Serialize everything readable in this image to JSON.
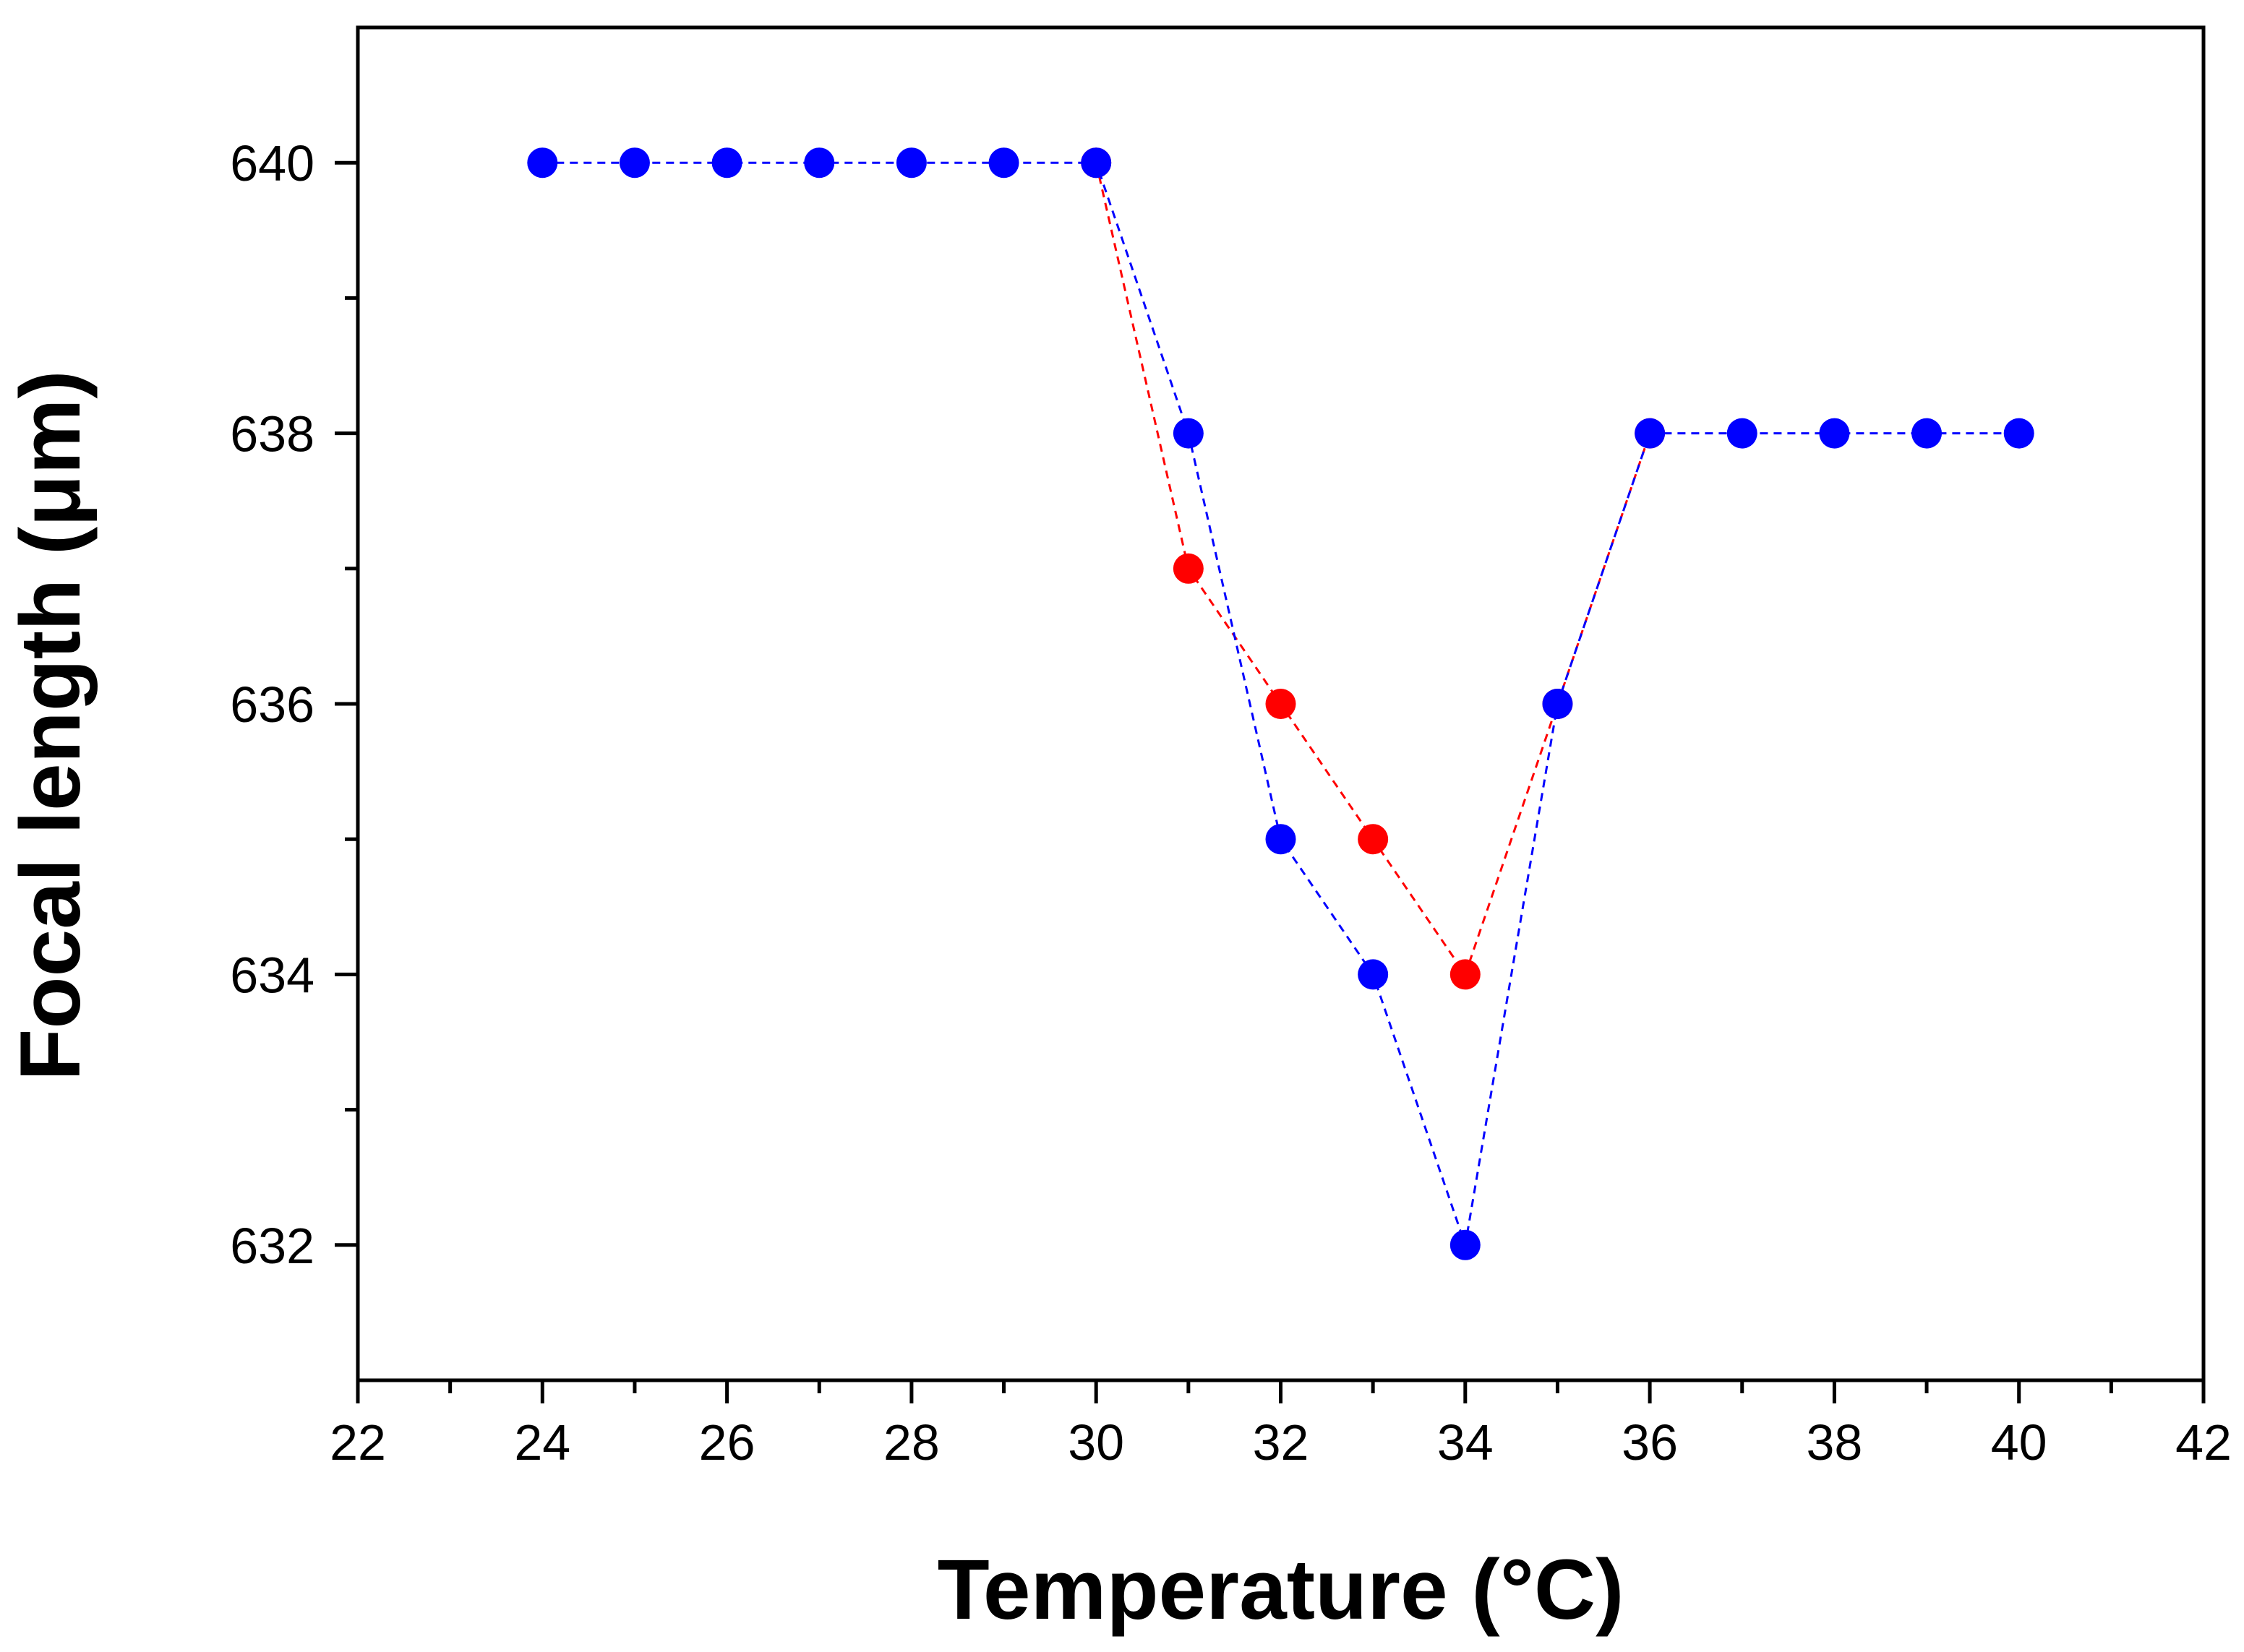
{
  "chart_data": {
    "type": "scatter",
    "title": "",
    "xlabel": "Temperature (°C)",
    "ylabel": "Focal length (μm)",
    "xlim": [
      22,
      42
    ],
    "ylim": [
      631,
      641
    ],
    "x_ticks": [
      22,
      24,
      26,
      28,
      30,
      32,
      34,
      36,
      38,
      40,
      42
    ],
    "x_minor_ticks": [
      23,
      25,
      27,
      29,
      31,
      33,
      35,
      37,
      39,
      41
    ],
    "y_ticks": [
      632,
      634,
      636,
      638,
      640
    ],
    "y_minor_ticks": [
      633,
      635,
      637,
      639
    ],
    "grid": false,
    "legend": null,
    "series": [
      {
        "name": "red",
        "color": "#ff0000",
        "line_style": "dashed",
        "x": [
          30,
          31,
          32,
          33,
          34,
          35,
          36
        ],
        "y": [
          640,
          637,
          636,
          635,
          634,
          636,
          638
        ]
      },
      {
        "name": "blue",
        "color": "#0000ff",
        "line_style": "dashed",
        "x": [
          24,
          25,
          26,
          27,
          28,
          29,
          30,
          31,
          32,
          33,
          34,
          35,
          36,
          37,
          38,
          39,
          40
        ],
        "y": [
          640,
          640,
          640,
          640,
          640,
          640,
          640,
          638,
          635,
          634,
          632,
          636,
          638,
          638,
          638,
          638,
          638
        ]
      }
    ]
  }
}
